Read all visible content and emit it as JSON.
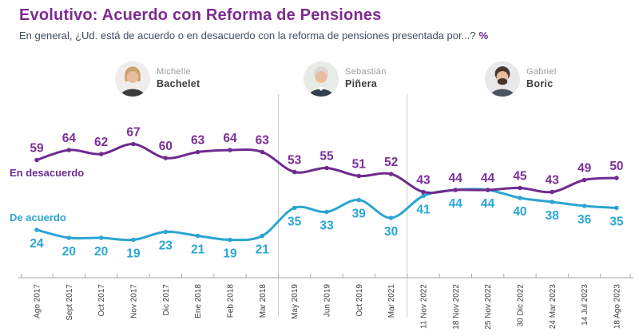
{
  "header": {
    "title": "Evolutivo: Acuerdo con Reforma de Pensiones",
    "subtitle": "En general, ¿Ud. está de acuerdo o en desacuerdo con la reforma de pensiones presentada por...?",
    "subtitle_suffix": "%"
  },
  "presidents": [
    {
      "first": "Michelle",
      "last": "Bachelet"
    },
    {
      "first": "Sebastián",
      "last": "Piñera"
    },
    {
      "first": "Gabriel",
      "last": "Boric"
    }
  ],
  "chart_data": {
    "type": "line",
    "title": "Evolutivo: Acuerdo con Reforma de Pensiones",
    "categories": [
      "Ago 2017",
      "Sept 2017",
      "Oct 2017",
      "Nov 2017",
      "Dic 2017",
      "Ene 2018",
      "Feb 2018",
      "Mar 2018",
      "May 2019",
      "Jun 2019",
      "Oct 2019",
      "Mar 2021",
      "11 Nov 2022",
      "18 Nov 2022",
      "25 Nov 2022",
      "30 Dic 2022",
      "24 Mar 2023",
      "14 Jul 2023",
      "18 Ago 2023"
    ],
    "series": [
      {
        "name": "En desacuerdo",
        "color": "#6e2b90",
        "label_color": "#7b2f97",
        "values": [
          59,
          64,
          62,
          67,
          60,
          63,
          64,
          63,
          53,
          55,
          51,
          52,
          43,
          44,
          44,
          45,
          43,
          49,
          50
        ]
      },
      {
        "name": "De acuerdo",
        "color": "#2ba5d1",
        "label_color": "#29a7d4",
        "values": [
          24,
          20,
          20,
          19,
          23,
          21,
          19,
          21,
          35,
          33,
          39,
          30,
          41,
          44,
          44,
          40,
          38,
          36,
          35
        ]
      }
    ],
    "era_divider_after_index": [
      7,
      11
    ],
    "eras": [
      {
        "president": "Michelle Bachelet",
        "from": "Ago 2017",
        "to": "Mar 2018"
      },
      {
        "president": "Sebastián Piñera",
        "from": "May 2019",
        "to": "Mar 2021"
      },
      {
        "president": "Gabriel Boric",
        "from": "11 Nov 2022",
        "to": "18 Ago 2023"
      }
    ],
    "ylim": [
      0,
      100
    ],
    "grid": false,
    "legend_position": "inline-left",
    "x_tick_rotation": 90,
    "unit": "%"
  }
}
